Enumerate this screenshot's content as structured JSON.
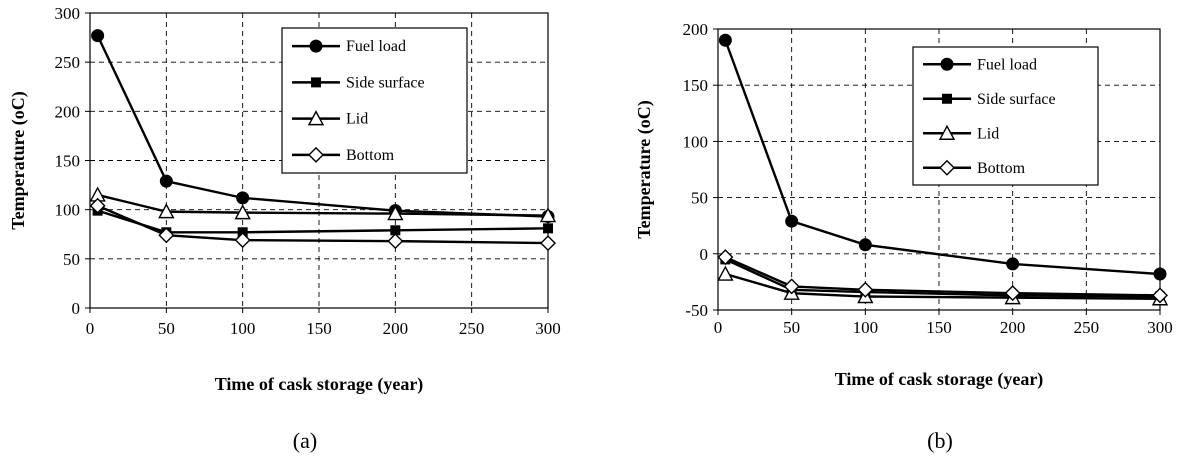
{
  "chart_data": [
    {
      "type": "line",
      "caption": "(a)",
      "xlabel": "Time of cask storage (year)",
      "ylabel": "Temperature (oC)",
      "xlim": [
        0,
        300
      ],
      "ylim": [
        0,
        300
      ],
      "xticks": [
        0,
        50,
        100,
        150,
        200,
        250,
        300
      ],
      "yticks": [
        0,
        50,
        100,
        150,
        200,
        250,
        300
      ],
      "grid": true,
      "legend_position": "top-right",
      "series": [
        {
          "name": "Fuel load",
          "marker": "circle-filled",
          "points": [
            [
              5,
              277
            ],
            [
              50,
              129
            ],
            [
              100,
              112
            ],
            [
              200,
              99
            ],
            [
              300,
              93
            ]
          ]
        },
        {
          "name": "Side surface",
          "marker": "square-filled",
          "points": [
            [
              5,
              99
            ],
            [
              50,
              77
            ],
            [
              100,
              77
            ],
            [
              200,
              79
            ],
            [
              300,
              81
            ]
          ]
        },
        {
          "name": "Lid",
          "marker": "triangle-open",
          "points": [
            [
              5,
              115
            ],
            [
              50,
              98
            ],
            [
              100,
              97
            ],
            [
              200,
              96
            ],
            [
              300,
              94
            ]
          ]
        },
        {
          "name": "Bottom",
          "marker": "diamond-open",
          "points": [
            [
              5,
              104
            ],
            [
              50,
              74
            ],
            [
              100,
              69
            ],
            [
              200,
              68
            ],
            [
              300,
              66
            ]
          ]
        }
      ]
    },
    {
      "type": "line",
      "caption": "(b)",
      "xlabel": "Time of cask storage (year)",
      "ylabel": "Temperature (oC)",
      "xlim": [
        0,
        300
      ],
      "ylim": [
        -50,
        200
      ],
      "xticks": [
        0,
        50,
        100,
        150,
        200,
        250,
        300
      ],
      "yticks": [
        -50,
        0,
        50,
        100,
        150,
        200
      ],
      "grid": true,
      "legend_position": "top-right",
      "series": [
        {
          "name": "Fuel load",
          "marker": "circle-filled",
          "points": [
            [
              5,
              190
            ],
            [
              50,
              29
            ],
            [
              100,
              8
            ],
            [
              200,
              -9
            ],
            [
              300,
              -18
            ]
          ]
        },
        {
          "name": "Side surface",
          "marker": "square-filled",
          "points": [
            [
              5,
              -5
            ],
            [
              50,
              -32
            ],
            [
              100,
              -34
            ],
            [
              200,
              -37
            ],
            [
              300,
              -38
            ]
          ]
        },
        {
          "name": "Lid",
          "marker": "triangle-open",
          "points": [
            [
              5,
              -18
            ],
            [
              50,
              -35
            ],
            [
              100,
              -38
            ],
            [
              200,
              -39
            ],
            [
              300,
              -40
            ]
          ]
        },
        {
          "name": "Bottom",
          "marker": "diamond-open",
          "points": [
            [
              5,
              -3
            ],
            [
              50,
              -29
            ],
            [
              100,
              -32
            ],
            [
              200,
              -35
            ],
            [
              300,
              -37
            ]
          ]
        }
      ]
    }
  ]
}
